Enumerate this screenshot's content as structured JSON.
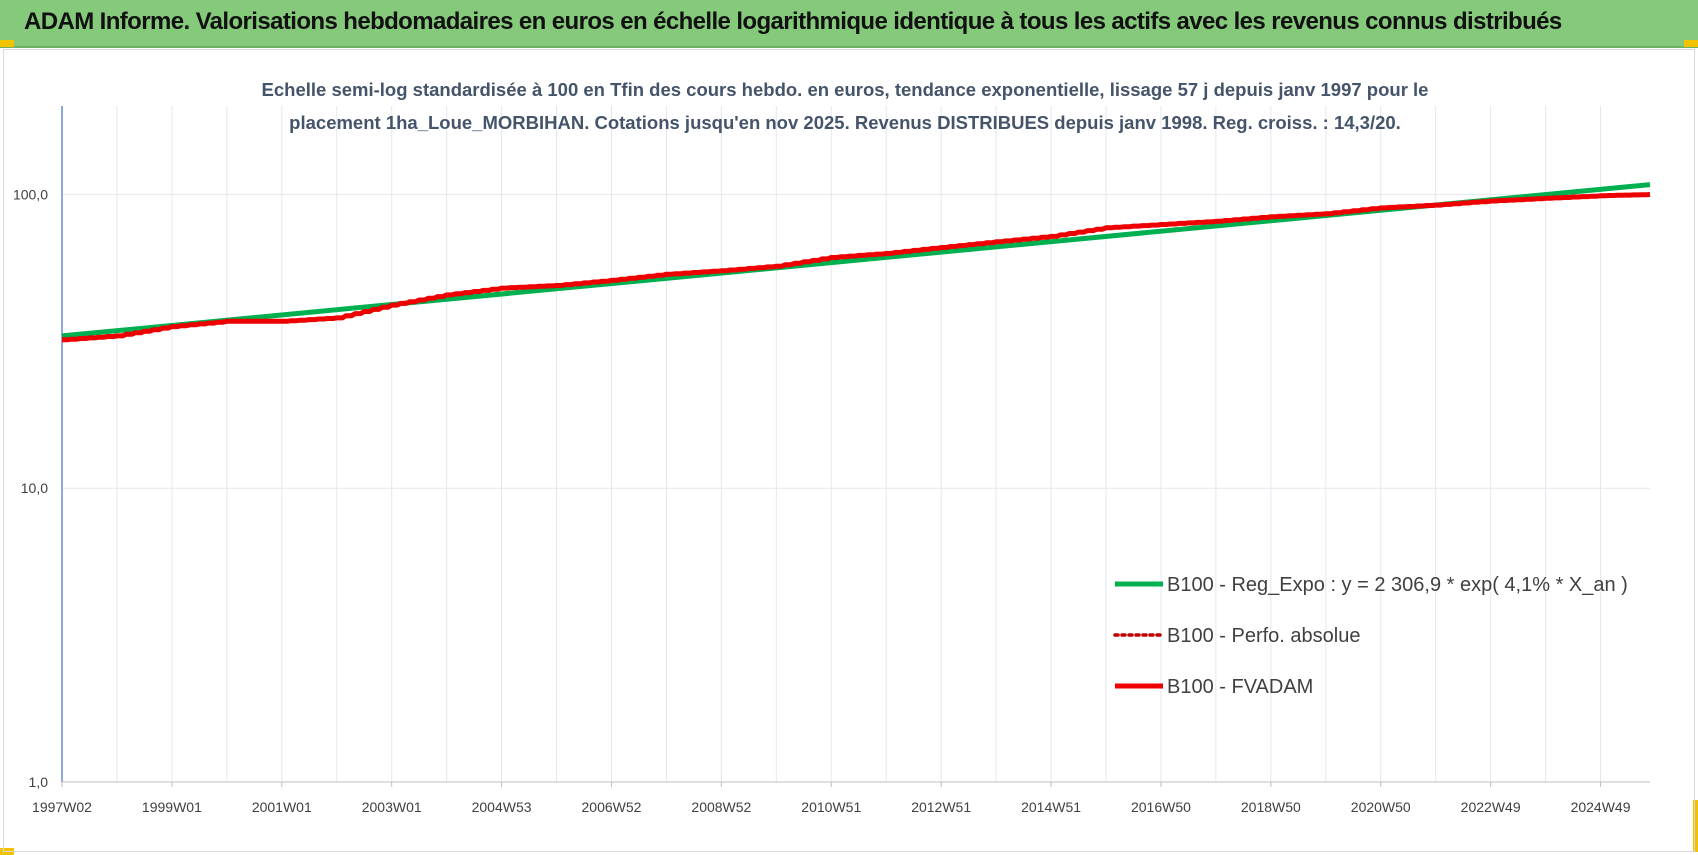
{
  "header": {
    "title": "ADAM Informe. Valorisations hebdomadaires en euros en échelle logarithmique identique à tous les actifs avec les revenus connus distribués"
  },
  "chart_data": {
    "type": "line",
    "title_lines": [
      "Echelle semi-log standardisée à 100 en Tfin des cours hebdo. en euros, tendance exponentielle, lissage 57 j depuis janv 1997 pour le",
      "placement 1ha_Loue_MORBIHAN. Cotations jusqu'en nov 2025. Revenus DISTRIBUES depuis janv 1998. Reg. croiss. : 14,3/20."
    ],
    "y_scale": "log",
    "ylim": [
      1,
      200
    ],
    "y_ticks": [
      {
        "value": 1,
        "label": "1,0"
      },
      {
        "value": 10,
        "label": "10,0"
      },
      {
        "value": 100,
        "label": "100,0"
      }
    ],
    "xlim": [
      1997.0,
      2025.9
    ],
    "x_ticks": [
      {
        "value": 1997.0,
        "label": "1997W02"
      },
      {
        "value": 1999.0,
        "label": "1999W01"
      },
      {
        "value": 2001.0,
        "label": "2001W01"
      },
      {
        "value": 2003.0,
        "label": "2003W01"
      },
      {
        "value": 2005.0,
        "label": "2004W53"
      },
      {
        "value": 2007.0,
        "label": "2006W52"
      },
      {
        "value": 2009.0,
        "label": "2008W52"
      },
      {
        "value": 2011.0,
        "label": "2010W51"
      },
      {
        "value": 2013.0,
        "label": "2012W51"
      },
      {
        "value": 2015.0,
        "label": "2014W51"
      },
      {
        "value": 2017.0,
        "label": "2016W50"
      },
      {
        "value": 2019.0,
        "label": "2018W50"
      },
      {
        "value": 2021.0,
        "label": "2020W50"
      },
      {
        "value": 2023.0,
        "label": "2022W49"
      },
      {
        "value": 2025.0,
        "label": "2024W49"
      }
    ],
    "grid": true,
    "legend_position": "bottom-right",
    "series": [
      {
        "name": "B100 - Reg_Expo : y = 2 306,9 * exp( 4,1% *  X_an )",
        "color": "#00b050",
        "style": "solid",
        "x": [
          1997.0,
          2025.9
        ],
        "y": [
          33.0,
          108.0
        ]
      },
      {
        "name": "B100 - Perfo. absolue",
        "color": "#c00000",
        "style": "dotted",
        "x": [],
        "y": []
      },
      {
        "name": "B100 - FVADAM",
        "color": "#ee0000",
        "style": "solid",
        "x": [
          1997.0,
          1998.0,
          1999.0,
          2000.0,
          2001.0,
          2002.0,
          2003.0,
          2004.0,
          2005.0,
          2006.0,
          2007.0,
          2008.0,
          2009.0,
          2010.0,
          2011.0,
          2012.0,
          2013.0,
          2014.0,
          2015.0,
          2016.0,
          2017.0,
          2018.0,
          2019.0,
          2020.0,
          2021.0,
          2022.0,
          2023.0,
          2024.0,
          2025.0,
          2025.9
        ],
        "y": [
          32.0,
          33.0,
          35.5,
          37.0,
          37.0,
          38.0,
          42.0,
          45.5,
          48.0,
          49.0,
          51.0,
          53.5,
          55.0,
          57.0,
          61.0,
          63.0,
          66.0,
          69.0,
          72.0,
          77.0,
          79.0,
          81.0,
          84.0,
          86.0,
          90.0,
          92.0,
          95.0,
          97.0,
          99.0,
          100.0
        ]
      }
    ]
  }
}
